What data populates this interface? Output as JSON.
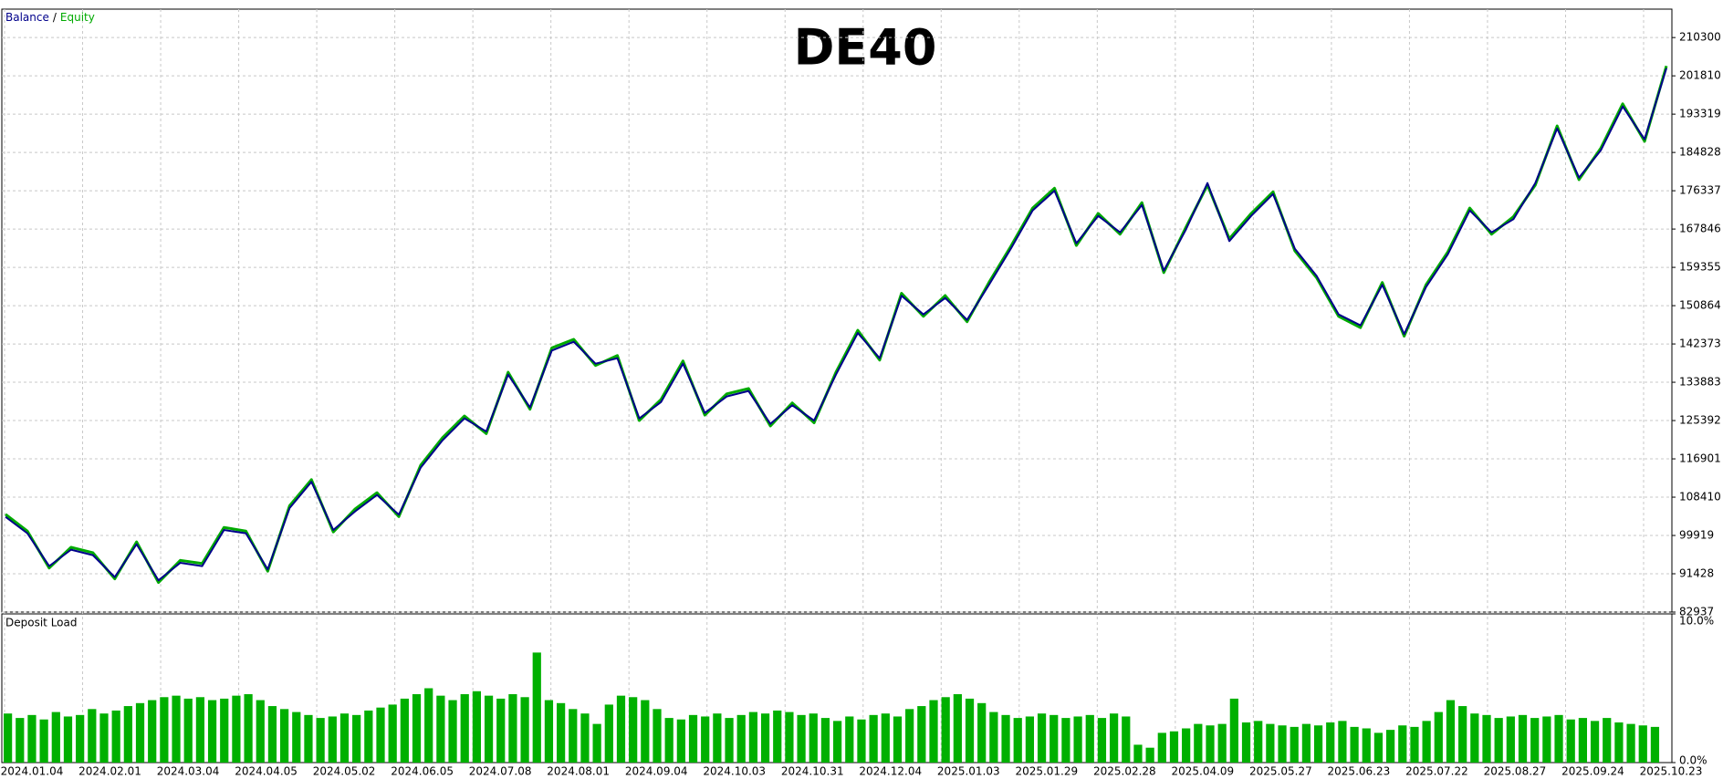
{
  "chart_data": [
    {
      "type": "line",
      "title": "DE40",
      "legend_separator": "/",
      "xticks": [
        "2024.01.04",
        "2024.02.01",
        "2024.03.04",
        "2024.04.05",
        "2024.05.02",
        "2024.06.05",
        "2024.07.08",
        "2024.08.01",
        "2024.09.04",
        "2024.10.03",
        "2024.10.31",
        "2024.12.04",
        "2025.01.03",
        "2025.01.29",
        "2025.02.28",
        "2025.04.09",
        "2025.05.27",
        "2025.06.23",
        "2025.07.22",
        "2025.08.27",
        "2025.09.24",
        "2025.10.23"
      ],
      "ylim": [
        82937,
        216600
      ],
      "yticks": [
        82937,
        91428,
        99919,
        108410,
        116901,
        125392,
        133883,
        142373,
        150864,
        159355,
        167846,
        176337,
        184828,
        193319,
        201810,
        210300
      ],
      "grid": true,
      "series": [
        {
          "name": "Balance",
          "color": "#00008b",
          "values": [
            104043,
            100404,
            93126,
            96765,
            95552,
            90700,
            97978,
            89972,
            93854,
            93126,
            101132,
            100404,
            92398,
            105984,
            111806,
            101132,
            105256,
            108895,
            104528,
            114960,
            121025,
            125877,
            122966,
            135581,
            128303,
            140918,
            142859,
            138007,
            139220,
            125877,
            129516,
            138007,
            127090,
            130729,
            131942,
            124664,
            128788,
            125392,
            135581,
            144800,
            139220,
            153048,
            148924,
            152563,
            147711,
            155474,
            163480,
            171971,
            176338,
            164693,
            170758,
            167119,
            173184,
            158628,
            167604,
            178036,
            165178,
            170758,
            175610,
            163480,
            157415,
            148924,
            146498,
            155474,
            144557,
            154989,
            162267,
            171971,
            167119,
            170030,
            178036,
            190166,
            179249,
            185314,
            195018,
            187740,
            203509
          ]
        },
        {
          "name": "Equity",
          "color": "#00aa00",
          "values": [
            104600,
            100900,
            92700,
            97300,
            96100,
            90300,
            98500,
            89500,
            94400,
            93700,
            101700,
            100900,
            92000,
            106500,
            112300,
            100700,
            105800,
            109400,
            104100,
            115500,
            121600,
            126400,
            122500,
            136100,
            127900,
            141500,
            143400,
            137600,
            139800,
            125400,
            130100,
            138600,
            126600,
            131300,
            132500,
            124200,
            129300,
            124900,
            136100,
            145400,
            138800,
            153600,
            148500,
            153100,
            147300,
            156000,
            164000,
            172500,
            176900,
            164200,
            171300,
            166700,
            173700,
            158200,
            168100,
            177600,
            165700,
            171300,
            176100,
            163000,
            157000,
            148500,
            146000,
            156000,
            144100,
            155500,
            162800,
            172500,
            166700,
            170600,
            177600,
            190700,
            178800,
            185800,
            195600,
            187300,
            204000
          ]
        }
      ]
    },
    {
      "type": "bar",
      "title": "Deposit Load",
      "color": "#00b000",
      "ylim": [
        0,
        10
      ],
      "yticks": [
        {
          "value": 0,
          "label": "0.0%"
        },
        {
          "value": 10,
          "label": "10.0%"
        }
      ],
      "values": [
        3.3,
        3.0,
        3.2,
        2.9,
        3.4,
        3.1,
        3.2,
        3.6,
        3.3,
        3.5,
        3.8,
        4.0,
        4.2,
        4.4,
        4.5,
        4.3,
        4.4,
        4.2,
        4.3,
        4.5,
        4.6,
        4.2,
        3.8,
        3.6,
        3.4,
        3.2,
        3.0,
        3.1,
        3.3,
        3.2,
        3.5,
        3.7,
        3.9,
        4.3,
        4.6,
        5.0,
        4.5,
        4.2,
        4.6,
        4.8,
        4.5,
        4.3,
        4.6,
        4.4,
        7.4,
        4.2,
        4.0,
        3.6,
        3.3,
        2.6,
        3.9,
        4.5,
        4.4,
        4.2,
        3.6,
        3.0,
        2.9,
        3.2,
        3.1,
        3.3,
        3.0,
        3.2,
        3.4,
        3.3,
        3.5,
        3.4,
        3.2,
        3.3,
        3.0,
        2.8,
        3.1,
        2.9,
        3.2,
        3.3,
        3.1,
        3.6,
        3.8,
        4.2,
        4.4,
        4.6,
        4.3,
        4.0,
        3.4,
        3.2,
        3.0,
        3.1,
        3.3,
        3.2,
        3.0,
        3.1,
        3.2,
        3.0,
        3.3,
        3.1,
        1.2,
        1.0,
        2.0,
        2.1,
        2.3,
        2.6,
        2.5,
        2.6,
        4.3,
        2.7,
        2.8,
        2.6,
        2.5,
        2.4,
        2.6,
        2.5,
        2.7,
        2.8,
        2.4,
        2.3,
        2.0,
        2.2,
        2.5,
        2.4,
        2.8,
        3.4,
        4.2,
        3.8,
        3.3,
        3.2,
        3.0,
        3.1,
        3.2,
        3.0,
        3.1,
        3.2,
        2.9,
        3.0,
        2.8,
        3.0,
        2.7,
        2.6,
        2.5,
        2.4
      ]
    }
  ]
}
